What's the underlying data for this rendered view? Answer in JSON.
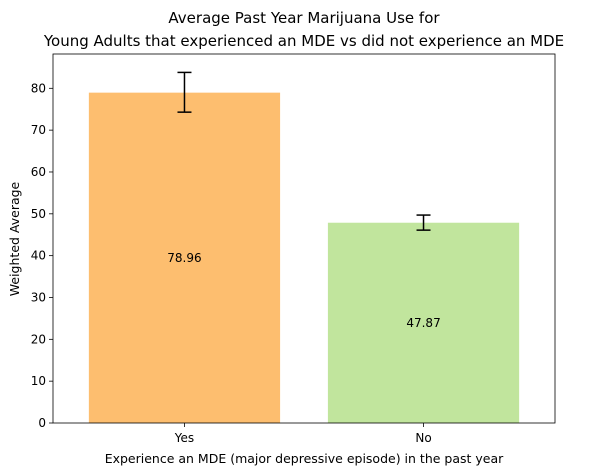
{
  "chart_data": {
    "type": "bar",
    "title_lines": [
      "Average Past Year Marijuana Use for",
      "Young Adults that experienced an MDE vs did not experience an MDE"
    ],
    "xlabel": "Experience an MDE (major depressive episode) in the past year",
    "ylabel": "Weighted Average",
    "categories": [
      "Yes",
      "No"
    ],
    "values": [
      78.96,
      47.87
    ],
    "value_labels": [
      "78.96",
      "47.87"
    ],
    "error_bars": [
      {
        "low": 74.3,
        "high": 83.8
      },
      {
        "low": 46.1,
        "high": 49.7
      }
    ],
    "bar_colors": [
      "#fdbe6f",
      "#c1e59d"
    ],
    "ylim": [
      0,
      88.2
    ],
    "yticks": [
      0,
      10,
      20,
      30,
      40,
      50,
      60,
      70,
      80
    ],
    "grid": false,
    "legend": "none"
  }
}
